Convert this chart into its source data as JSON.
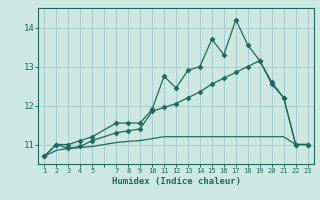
{
  "title": "",
  "xlabel": "Humidex (Indice chaleur)",
  "bg_color": "#cce8e0",
  "grid_color": "#aacccc",
  "line_color": "#1a6b5a",
  "x_values": [
    1,
    2,
    3,
    4,
    5,
    7,
    8,
    9,
    10,
    11,
    12,
    13,
    14,
    15,
    16,
    17,
    18,
    19,
    20,
    21,
    22,
    23
  ],
  "line1_y": [
    10.7,
    11.0,
    11.0,
    11.1,
    11.2,
    11.55,
    11.55,
    11.55,
    11.9,
    12.75,
    12.45,
    12.9,
    13.0,
    13.7,
    13.3,
    14.2,
    13.55,
    13.15,
    12.6,
    12.2,
    11.0,
    11.0
  ],
  "line2_y": [
    10.7,
    11.0,
    10.9,
    10.95,
    11.1,
    11.3,
    11.35,
    11.4,
    11.85,
    11.95,
    12.05,
    12.2,
    12.35,
    12.55,
    12.7,
    12.85,
    13.0,
    13.15,
    12.55,
    12.2,
    11.0,
    11.0
  ],
  "line3_y": [
    10.7,
    10.85,
    10.9,
    10.92,
    10.95,
    11.05,
    11.08,
    11.1,
    11.15,
    11.2,
    11.2,
    11.2,
    11.2,
    11.2,
    11.2,
    11.2,
    11.2,
    11.2,
    11.2,
    11.2,
    11.0,
    11.0
  ],
  "yticks": [
    11,
    12,
    13,
    14
  ],
  "xlim": [
    0.5,
    23.5
  ],
  "ylim": [
    10.5,
    14.5
  ]
}
